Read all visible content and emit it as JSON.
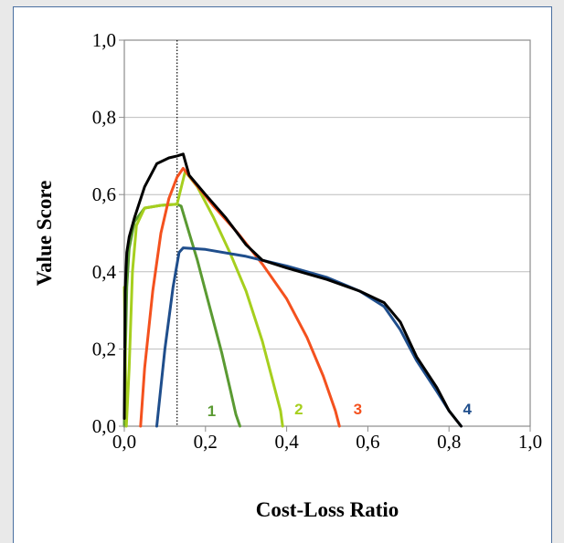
{
  "chart_data": {
    "type": "line",
    "xlabel": "Cost-Loss Ratio",
    "ylabel": "Value Score",
    "xlim": [
      0,
      1
    ],
    "ylim": [
      0,
      1
    ],
    "x_ticks": [
      "0,0",
      "0,2",
      "0,4",
      "0,6",
      "0,8",
      "1,0"
    ],
    "y_ticks": [
      "0,0",
      "0,2",
      "0,4",
      "0,6",
      "0,8",
      "1,0"
    ],
    "grid": "horizontal",
    "reference_line": {
      "x": 0.13,
      "style": "dotted"
    },
    "series": [
      {
        "name": "1",
        "color": "#5a9a32",
        "points": [
          [
            0.0,
            0.0
          ],
          [
            0.003,
            0.2
          ],
          [
            0.006,
            0.36
          ],
          [
            0.012,
            0.46
          ],
          [
            0.025,
            0.53
          ],
          [
            0.05,
            0.565
          ],
          [
            0.09,
            0.572
          ],
          [
            0.13,
            0.575
          ],
          [
            0.14,
            0.57
          ],
          [
            0.16,
            0.5
          ],
          [
            0.18,
            0.43
          ],
          [
            0.2,
            0.35
          ],
          [
            0.22,
            0.27
          ],
          [
            0.24,
            0.19
          ],
          [
            0.26,
            0.1
          ],
          [
            0.275,
            0.03
          ],
          [
            0.285,
            0.0
          ]
        ]
      },
      {
        "name": "2",
        "color": "#a6cf1e",
        "points": [
          [
            0.0,
            0.36
          ],
          [
            0.005,
            0.0
          ],
          [
            0.012,
            0.15
          ],
          [
            0.02,
            0.4
          ],
          [
            0.03,
            0.52
          ],
          [
            0.05,
            0.565
          ],
          [
            0.09,
            0.572
          ],
          [
            0.13,
            0.575
          ],
          [
            0.15,
            0.66
          ],
          [
            0.18,
            0.62
          ],
          [
            0.22,
            0.54
          ],
          [
            0.26,
            0.45
          ],
          [
            0.3,
            0.35
          ],
          [
            0.34,
            0.22
          ],
          [
            0.37,
            0.1
          ],
          [
            0.385,
            0.04
          ],
          [
            0.39,
            0.0
          ]
        ]
      },
      {
        "name": "3",
        "color": "#f4511e",
        "points": [
          [
            0.04,
            0.0
          ],
          [
            0.05,
            0.15
          ],
          [
            0.07,
            0.35
          ],
          [
            0.09,
            0.5
          ],
          [
            0.11,
            0.59
          ],
          [
            0.13,
            0.645
          ],
          [
            0.145,
            0.668
          ],
          [
            0.17,
            0.635
          ],
          [
            0.22,
            0.57
          ],
          [
            0.28,
            0.5
          ],
          [
            0.34,
            0.42
          ],
          [
            0.4,
            0.33
          ],
          [
            0.45,
            0.23
          ],
          [
            0.49,
            0.13
          ],
          [
            0.52,
            0.04
          ],
          [
            0.53,
            0.0
          ]
        ]
      },
      {
        "name": "4",
        "color": "#1f4e8c",
        "points": [
          [
            0.08,
            0.0
          ],
          [
            0.1,
            0.2
          ],
          [
            0.12,
            0.36
          ],
          [
            0.135,
            0.45
          ],
          [
            0.145,
            0.462
          ],
          [
            0.2,
            0.458
          ],
          [
            0.3,
            0.44
          ],
          [
            0.4,
            0.415
          ],
          [
            0.5,
            0.385
          ],
          [
            0.58,
            0.35
          ],
          [
            0.64,
            0.31
          ],
          [
            0.68,
            0.25
          ],
          [
            0.72,
            0.17
          ],
          [
            0.77,
            0.09
          ],
          [
            0.8,
            0.04
          ],
          [
            0.83,
            0.0
          ]
        ]
      },
      {
        "name": "",
        "color": "#000000",
        "points": [
          [
            0.0,
            0.02
          ],
          [
            0.002,
            0.35
          ],
          [
            0.006,
            0.45
          ],
          [
            0.012,
            0.49
          ],
          [
            0.025,
            0.54
          ],
          [
            0.05,
            0.62
          ],
          [
            0.08,
            0.68
          ],
          [
            0.11,
            0.695
          ],
          [
            0.13,
            0.7
          ],
          [
            0.145,
            0.705
          ],
          [
            0.16,
            0.65
          ],
          [
            0.2,
            0.6
          ],
          [
            0.25,
            0.54
          ],
          [
            0.3,
            0.47
          ],
          [
            0.34,
            0.43
          ],
          [
            0.4,
            0.41
          ],
          [
            0.5,
            0.38
          ],
          [
            0.58,
            0.35
          ],
          [
            0.64,
            0.32
          ],
          [
            0.68,
            0.27
          ],
          [
            0.72,
            0.18
          ],
          [
            0.77,
            0.1
          ],
          [
            0.8,
            0.04
          ],
          [
            0.83,
            0.0
          ]
        ]
      }
    ],
    "curve_labels": [
      {
        "text": "1",
        "x": 0.215,
        "y": 0.04,
        "color": "#5a9a32"
      },
      {
        "text": "2",
        "x": 0.43,
        "y": 0.045,
        "color": "#a6cf1e"
      },
      {
        "text": "3",
        "x": 0.575,
        "y": 0.045,
        "color": "#f4511e"
      },
      {
        "text": "4",
        "x": 0.845,
        "y": 0.045,
        "color": "#1f4e8c"
      }
    ]
  }
}
